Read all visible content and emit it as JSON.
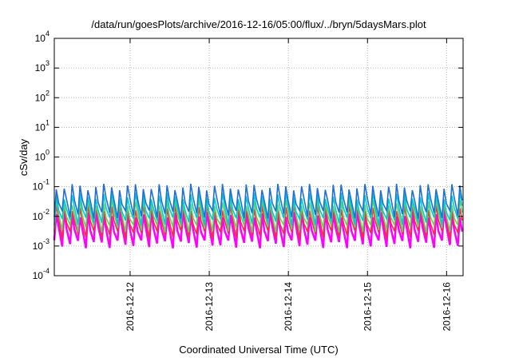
{
  "chart_data": {
    "type": "line",
    "title": "/data/run/goesPlots/archive/2016-12-16/05:00/flux/../bryn/5daysMars.plot",
    "xlabel": "Coordinated Universal Time (UTC)",
    "ylabel": "cSv/day",
    "y_scale": "log",
    "ylim": [
      0.0001,
      10000
    ],
    "y_ticks": [
      {
        "base": "10",
        "exp": "-4",
        "value": 0.0001
      },
      {
        "base": "10",
        "exp": "-3",
        "value": 0.001
      },
      {
        "base": "10",
        "exp": "-2",
        "value": 0.01
      },
      {
        "base": "10",
        "exp": "-1",
        "value": 0.1
      },
      {
        "base": "10",
        "exp": "0",
        "value": 1
      },
      {
        "base": "10",
        "exp": "1",
        "value": 10
      },
      {
        "base": "10",
        "exp": "2",
        "value": 100
      },
      {
        "base": "10",
        "exp": "3",
        "value": 1000
      },
      {
        "base": "10",
        "exp": "4",
        "value": 10000
      }
    ],
    "xlim": [
      "2016-12-11T01:00",
      "2016-12-16T05:00"
    ],
    "x_ticks": [
      "2016-12-12",
      "2016-12-13",
      "2016-12-14",
      "2016-12-15",
      "2016-12-16"
    ],
    "grid": true,
    "legend": "none",
    "cycle_hours": 2.4,
    "series": [
      {
        "color": "#ff00ff",
        "peak": 0.012,
        "trough": 0.0012
      },
      {
        "color": "#ee3333",
        "peak": 0.02,
        "trough": 0.0025
      },
      {
        "color": "#66cc66",
        "peak": 0.03,
        "trough": 0.004
      },
      {
        "color": "#00cccc",
        "peak": 0.05,
        "trough": 0.007
      },
      {
        "color": "#1f6fd6",
        "peak": 0.1,
        "trough": 0.012
      }
    ]
  }
}
